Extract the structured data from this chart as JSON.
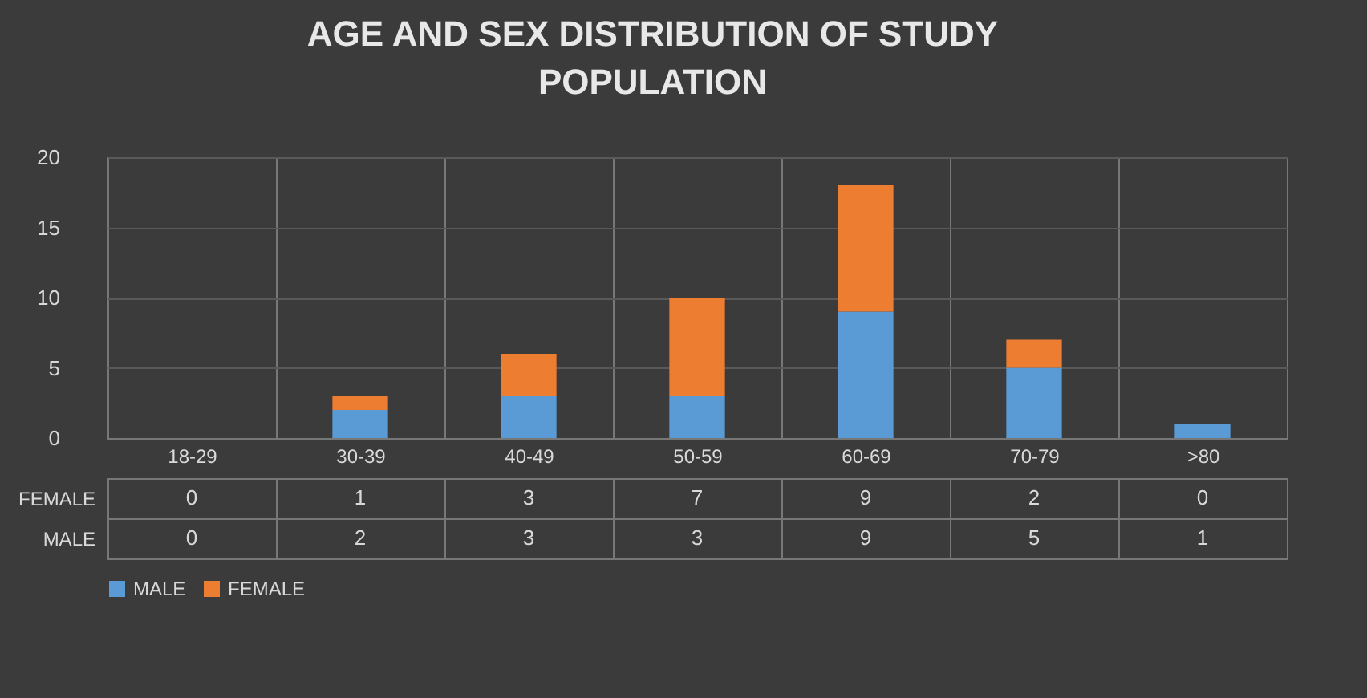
{
  "chart_data": {
    "type": "bar",
    "title": "AGE AND SEX DISTRIBUTION OF STUDY POPULATION",
    "categories": [
      "18-29",
      "30-39",
      "40-49",
      "50-59",
      "60-69",
      "70-79",
      ">80"
    ],
    "series": [
      {
        "name": "MALE",
        "color": "#5b9bd5",
        "values": [
          0,
          2,
          3,
          3,
          9,
          5,
          1
        ]
      },
      {
        "name": "FEMALE",
        "color": "#ed7d31",
        "values": [
          0,
          1,
          3,
          7,
          9,
          2,
          0
        ]
      }
    ],
    "stacked": true,
    "ylim": [
      0,
      20
    ],
    "yticks": [
      0,
      5,
      10,
      15,
      20
    ],
    "grid": "y",
    "legend": "bottom",
    "data_labels": true
  }
}
